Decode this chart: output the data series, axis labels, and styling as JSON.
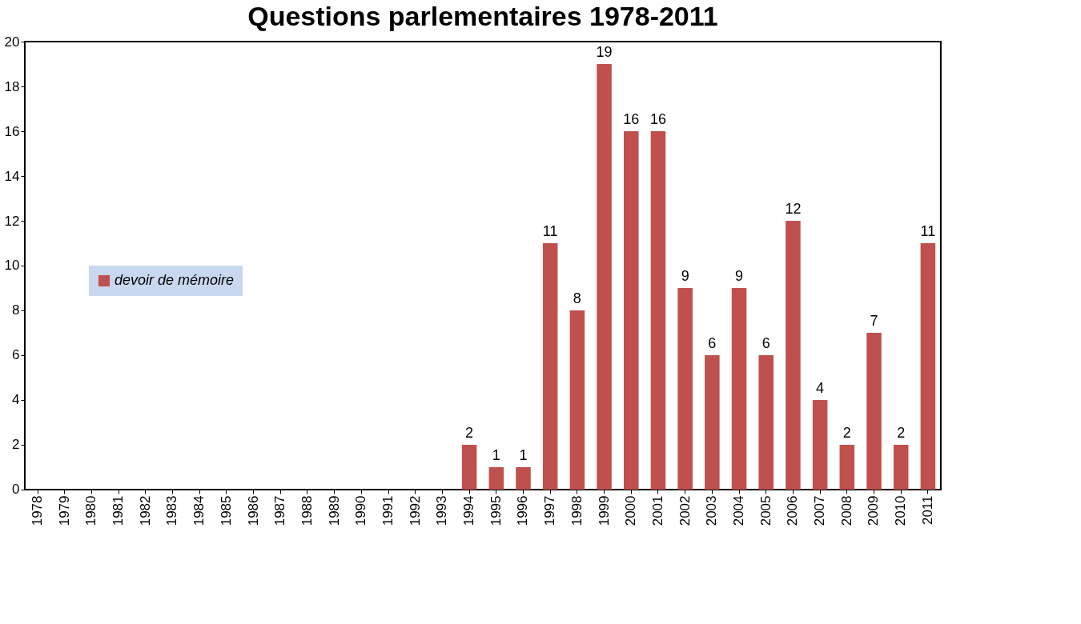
{
  "chart_data": {
    "type": "bar",
    "title": "Questions parlementaires 1978-2011",
    "categories": [
      "1978",
      "1979",
      "1980",
      "1981",
      "1982",
      "1983",
      "1984",
      "1985",
      "1986",
      "1987",
      "1988",
      "1989",
      "1990",
      "1991",
      "1992",
      "1993",
      "1994",
      "1995",
      "1996",
      "1997",
      "1998",
      "1999",
      "2000",
      "2001",
      "2002",
      "2003",
      "2004",
      "2005",
      "2006",
      "2007",
      "2008",
      "2009",
      "2010",
      "2011"
    ],
    "series": [
      {
        "name": "devoir de mémoire",
        "color": "#c0504d",
        "values": [
          0,
          0,
          0,
          0,
          0,
          0,
          0,
          0,
          0,
          0,
          0,
          0,
          0,
          0,
          0,
          0,
          2,
          1,
          1,
          11,
          8,
          19,
          16,
          16,
          9,
          6,
          9,
          6,
          12,
          4,
          2,
          7,
          2,
          11
        ],
        "value_labels": [
          null,
          null,
          null,
          null,
          null,
          null,
          null,
          null,
          null,
          null,
          null,
          null,
          null,
          null,
          null,
          null,
          "2",
          "1",
          "1",
          "11",
          "8",
          "19",
          "16",
          "16",
          "9",
          "6",
          "9",
          "6",
          "12",
          "4",
          "2",
          "7",
          "2",
          "11"
        ]
      }
    ],
    "ylim": [
      0,
      20
    ],
    "yticks": [
      0,
      2,
      4,
      6,
      8,
      10,
      12,
      14,
      16,
      18,
      20
    ],
    "grid": false,
    "legend": "left"
  }
}
